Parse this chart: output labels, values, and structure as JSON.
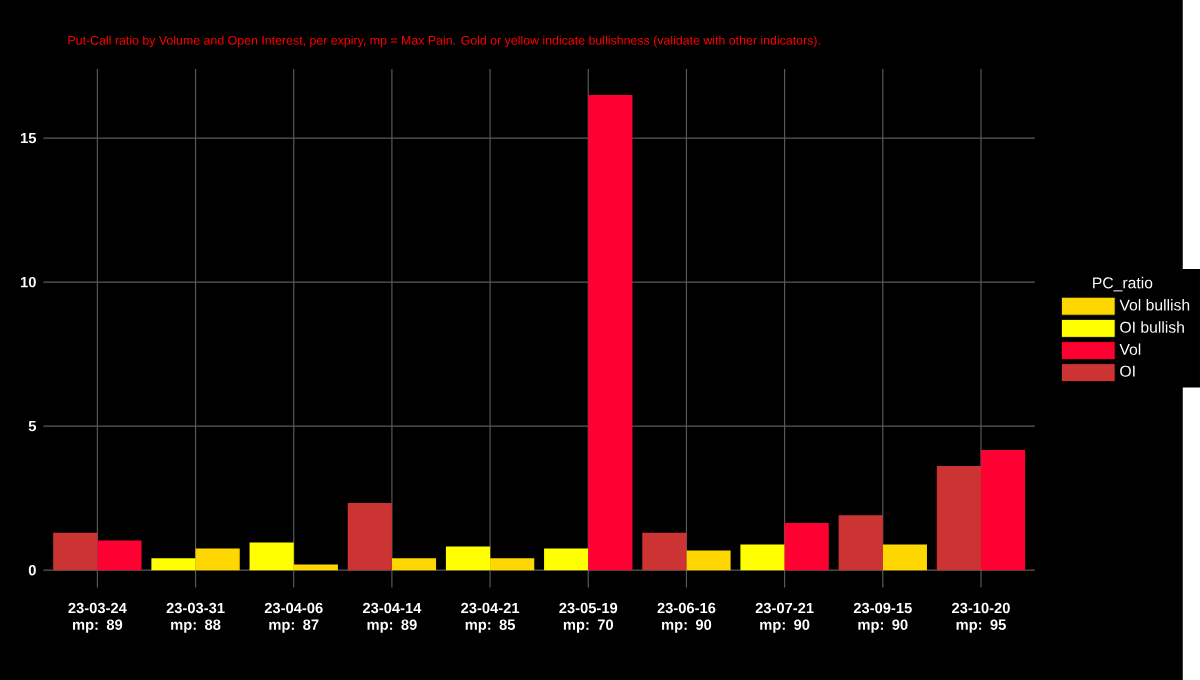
{
  "chart_data": {
    "type": "bar",
    "subtitle": "Put-Call ratio by Volume and Open Interest, per expiry, mp = Max Pain. Gold or yellow indicate bullishness (validate with other indicators).",
    "legend_title": "PC_ratio",
    "categories": [
      "23-03-24 mp: 89",
      "23-03-31 mp: 88",
      "23-04-06 mp: 87",
      "23-04-14 mp: 89",
      "23-04-21 mp: 85",
      "23-05-19 mp: 70",
      "23-06-16 mp: 90",
      "23-07-21 mp: 90",
      "23-09-15 mp: 90",
      "23-10-20 mp: 95"
    ],
    "series": [
      {
        "name": "Vol bullish",
        "color": "#ffd700",
        "values": [
          null,
          0.75,
          0.2,
          0.41,
          0.41,
          null,
          0.68,
          null,
          0.89,
          null
        ]
      },
      {
        "name": "OI bullish",
        "color": "#ffff00",
        "values": [
          null,
          0.41,
          0.96,
          null,
          0.82,
          0.75,
          null,
          0.89,
          null,
          null
        ]
      },
      {
        "name": "Vol",
        "color": "#ff0033",
        "values": [
          1.03,
          null,
          null,
          null,
          null,
          16.5,
          null,
          1.64,
          null,
          4.17
        ]
      },
      {
        "name": "OI",
        "color": "#cc3333",
        "values": [
          1.3,
          null,
          null,
          2.33,
          null,
          null,
          1.3,
          null,
          1.91,
          3.62
        ]
      }
    ],
    "ylim": [
      -0.6,
      17.4
    ],
    "yticks": [
      0,
      5,
      10,
      15
    ],
    "grid": true,
    "legend": "right"
  }
}
